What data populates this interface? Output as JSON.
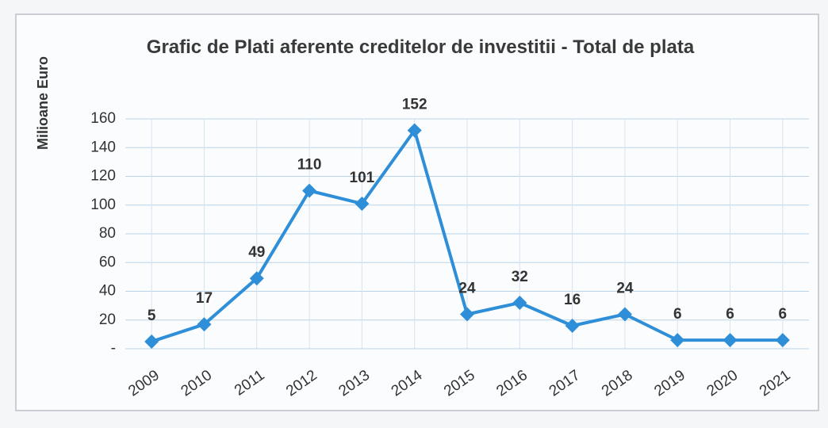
{
  "chart_data": {
    "type": "line",
    "title": "Grafic de Plati  aferente creditelor de investitii - Total de plata",
    "y_label": "Milioane Euro",
    "categories": [
      "2009",
      "2010",
      "2011",
      "2012",
      "2013",
      "2014",
      "2015",
      "2016",
      "2017",
      "2018",
      "2019",
      "2020",
      "2021"
    ],
    "series": [
      {
        "name": "Total de plata",
        "color": "#2e8fd8",
        "values": [
          5,
          17,
          49,
          110,
          101,
          152,
          24,
          32,
          16,
          24,
          6,
          6,
          6
        ]
      }
    ],
    "ylim": [
      0,
      160
    ],
    "yticks": [
      {
        "value": 0,
        "label": "-"
      },
      20,
      40,
      60,
      80,
      100,
      120,
      140,
      160
    ],
    "grid": true
  }
}
